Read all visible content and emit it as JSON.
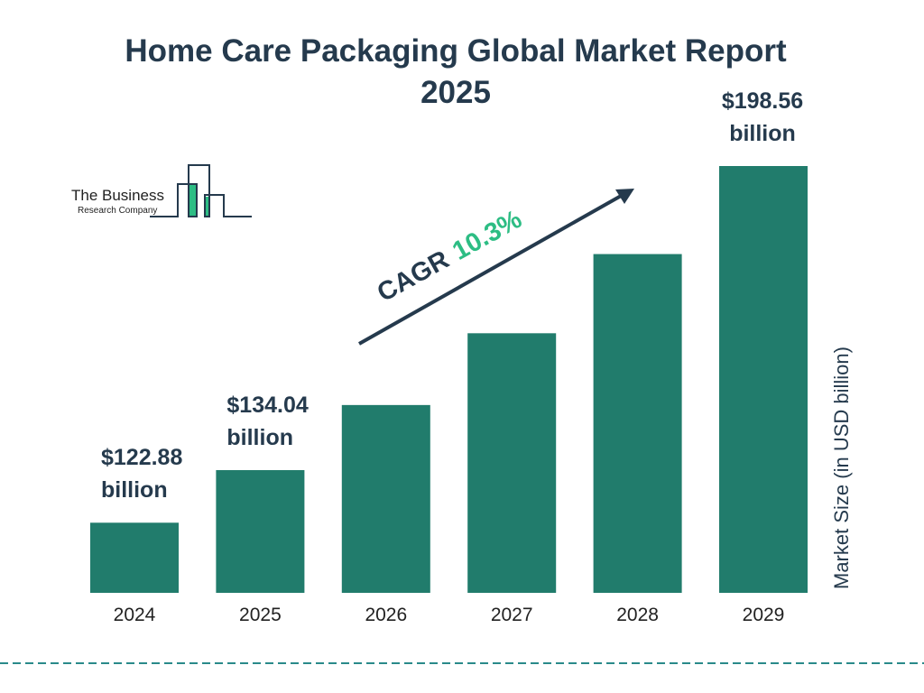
{
  "chart_data": {
    "type": "bar",
    "title": "Home Care Packaging Global Market Report 2025",
    "title_lines": [
      "Home Care Packaging Global Market Report",
      "2025"
    ],
    "categories": [
      "2024",
      "2025",
      "2026",
      "2027",
      "2028",
      "2029"
    ],
    "values": [
      122.88,
      134.04,
      147.85,
      163.08,
      179.88,
      198.56
    ],
    "data_labels": [
      {
        "index": 0,
        "value": "$122.88",
        "unit": "billion"
      },
      {
        "index": 1,
        "value": "$134.04",
        "unit": "billion"
      },
      {
        "index": 5,
        "value": "$198.56",
        "unit": "billion"
      }
    ],
    "xlabel": "",
    "ylabel": "Market Size (in USD billion)",
    "ylim": [
      108,
      200
    ],
    "grid": false,
    "annotation": {
      "prefix": "CAGR",
      "value": "10.3%"
    },
    "colors": {
      "bar": "#217c6c",
      "title": "#253a4d",
      "cagr": "#2dbd84",
      "divider": "#2a8a8a"
    }
  },
  "logo": {
    "line1": "The Business",
    "line2": "Research Company"
  }
}
